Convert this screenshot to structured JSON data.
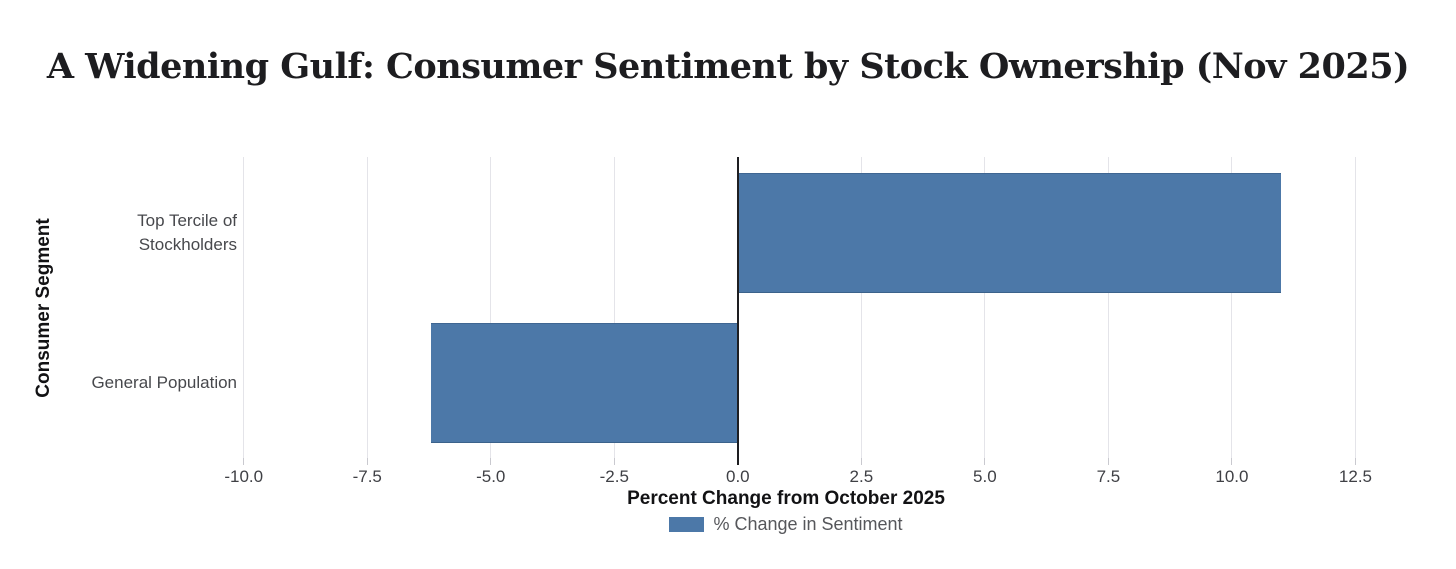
{
  "chart_data": {
    "type": "bar",
    "orientation": "horizontal",
    "title": "A Widening Gulf: Consumer Sentiment by Stock Ownership (Nov 2025)",
    "xlabel": "Percent Change from October 2025",
    "ylabel": "Consumer Segment",
    "categories": [
      "Top Tercile of Stockholders",
      "General Population"
    ],
    "category_label_lines": [
      [
        "Top Tercile of",
        "Stockholders"
      ],
      [
        "General Population"
      ]
    ],
    "values": [
      11.0,
      -6.2
    ],
    "series": [
      {
        "name": "% Change in Sentiment",
        "values": [
          11.0,
          -6.2
        ]
      }
    ],
    "xlim": [
      -11.35,
      13.3
    ],
    "xticks": [
      -10,
      -7.5,
      -5,
      -2.5,
      0,
      2.5,
      5,
      7.5,
      10,
      12.5
    ],
    "xtick_labels": [
      "-10.0",
      "-7.5",
      "-5.0",
      "-2.5",
      "0.0",
      "2.5",
      "5.0",
      "7.5",
      "10.0",
      "12.5"
    ],
    "grid": true,
    "zero_line": true,
    "legend_position": "bottom",
    "colors": {
      "bar": "#4C78A8",
      "gridline": "#e4e4e9",
      "tick": "#c9c9cf",
      "zero_line": "#1e1e21",
      "tick_label": "#3f4045",
      "category_label": "#47484c",
      "axis_title": "#121214",
      "title": "#1d1d20",
      "legend_text": "#56575b",
      "background": "#ffffff"
    }
  },
  "legend": {
    "label": "% Change in Sentiment"
  }
}
